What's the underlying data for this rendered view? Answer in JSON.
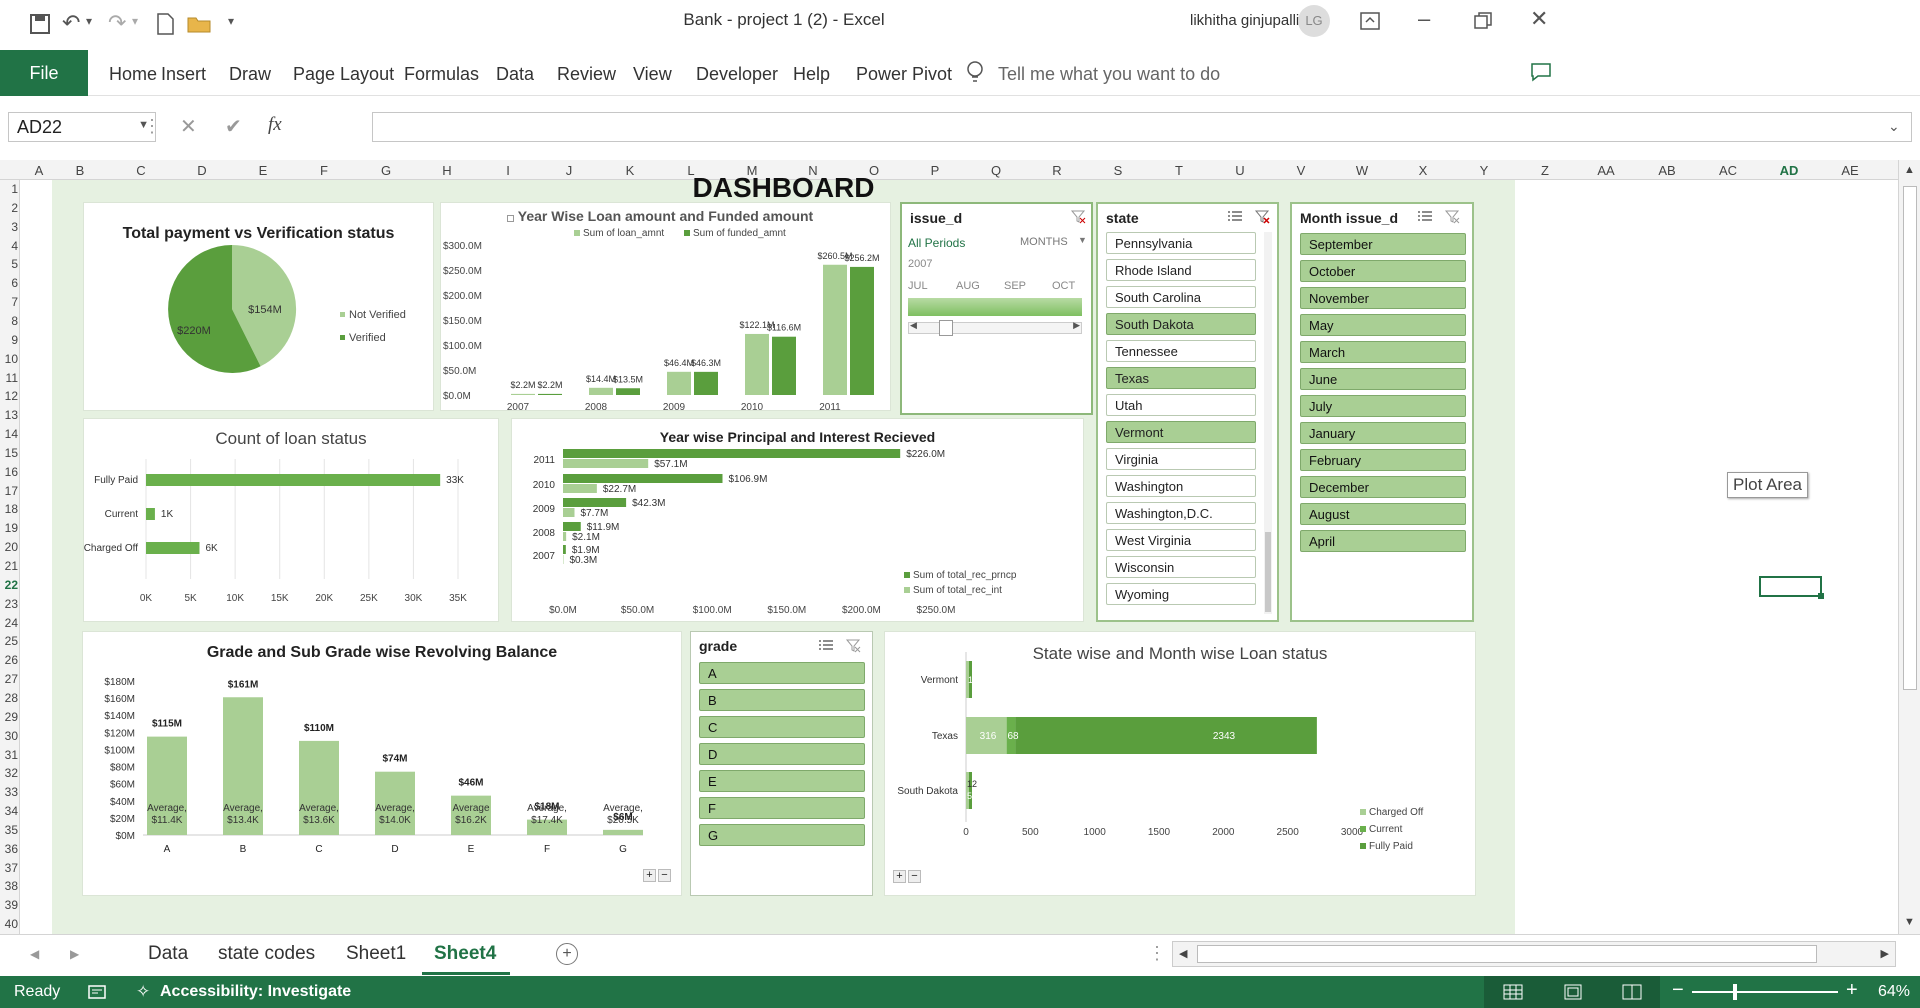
{
  "window": {
    "title": "Bank - project 1 (2)  -  Excel",
    "user": "likhitha ginjupalli",
    "avatar": "LG"
  },
  "ribbon": {
    "tabs": [
      "File",
      "Home",
      "Insert",
      "Draw",
      "Page Layout",
      "Formulas",
      "Data",
      "Review",
      "View",
      "Developer",
      "Help",
      "Power Pivot"
    ],
    "search_placeholder": "Tell me what you want to do"
  },
  "formula_bar": {
    "name_box": "AD22",
    "fx": "fx",
    "value": ""
  },
  "columns": [
    "A",
    "B",
    "C",
    "D",
    "E",
    "F",
    "G",
    "H",
    "I",
    "J",
    "K",
    "L",
    "M",
    "N",
    "O",
    "P",
    "Q",
    "R",
    "S",
    "T",
    "U",
    "V",
    "W",
    "X",
    "Y",
    "Z",
    "AA",
    "AB",
    "AC",
    "AD",
    "AE"
  ],
  "rows": [
    "1",
    "2",
    "3",
    "4",
    "5",
    "6",
    "7",
    "8",
    "9",
    "10",
    "11",
    "12",
    "13",
    "14",
    "15",
    "16",
    "17",
    "18",
    "19",
    "20",
    "21",
    "22",
    "23",
    "24",
    "25",
    "26",
    "27",
    "28",
    "29",
    "30",
    "31",
    "32",
    "33",
    "34",
    "35",
    "36",
    "37",
    "38",
    "39",
    "40"
  ],
  "dashboard": {
    "title": "DASHBOARD",
    "tooltip": "Plot Area"
  },
  "charts": {
    "pie": {
      "title": "Total payment vs Verification status",
      "labels": [
        "$154M",
        "$220M"
      ],
      "legend": [
        "Not Verified",
        "Verified"
      ]
    },
    "yearwise": {
      "title": "Year Wise Loan amount and Funded amount",
      "legend": [
        "Sum of loan_amnt",
        "Sum of funded_amnt"
      ],
      "yticks": [
        "$300.0M",
        "$250.0M",
        "$200.0M",
        "$150.0M",
        "$100.0M",
        "$50.0M",
        "$0.0M"
      ],
      "categories": [
        "2007",
        "2008",
        "2009",
        "2010",
        "2011"
      ],
      "labels_loan": [
        "$2.2M",
        "$14.4M",
        "$46.4M",
        "$122.1M",
        "$260.5M"
      ],
      "labels_funded": [
        "$2.2M",
        "$13.5M",
        "$46.3M",
        "$116.6M",
        "$256.2M"
      ]
    },
    "loanstatus": {
      "title": "Count of loan status",
      "categories": [
        "Fully Paid",
        "Current",
        "Charged Off"
      ],
      "labels": [
        "33K",
        "1K",
        "6K"
      ],
      "xticks": [
        "0K",
        "5K",
        "10K",
        "15K",
        "20K",
        "25K",
        "30K",
        "35K"
      ]
    },
    "principal": {
      "title": "Year wise Principal and Interest Recieved",
      "categories": [
        "2011",
        "2010",
        "2009",
        "2008",
        "2007"
      ],
      "labels_prncp": [
        "$226.0M",
        "$106.9M",
        "$42.3M",
        "$11.9M",
        "$1.9M"
      ],
      "labels_int": [
        "$57.1M",
        "$22.7M",
        "$7.7M",
        "$2.1M",
        "$0.3M"
      ],
      "legend": [
        "Sum of total_rec_prncp",
        "Sum of total_rec_int"
      ],
      "xticks": [
        "$0.0M",
        "$50.0M",
        "$100.0M",
        "$150.0M",
        "$200.0M",
        "$250.0M"
      ]
    },
    "grade": {
      "title": "Grade and Sub Grade wise Revolving Balance",
      "yticks": [
        "$180M",
        "$160M",
        "$140M",
        "$120M",
        "$100M",
        "$80M",
        "$60M",
        "$40M",
        "$20M",
        "$0M"
      ],
      "categories": [
        "A",
        "B",
        "C",
        "D",
        "E",
        "F",
        "G"
      ],
      "top_labels": [
        "$115M",
        "$161M",
        "$110M",
        "$74M",
        "$46M",
        "$18M",
        "$6M"
      ],
      "avg_labels": [
        "$11.4K",
        "$13.4K",
        "$13.6K",
        "$14.0K",
        "$16.2K",
        "$17.4K",
        "$20.5K"
      ],
      "avg_word": "Average,",
      "avg_word_e": "Average"
    },
    "statewise": {
      "title": "State wise and Month wise Loan status",
      "categories": [
        "Vermont",
        "Texas",
        "South Dakota"
      ],
      "texas_labels": [
        "316",
        "68",
        "2343"
      ],
      "small_labels": [
        "1",
        "1",
        "12",
        "5"
      ],
      "legend": [
        "Charged Off",
        "Current",
        "Fully Paid"
      ],
      "xticks": [
        "0",
        "500",
        "1000",
        "1500",
        "2000",
        "2500",
        "3000"
      ]
    }
  },
  "chart_data": [
    {
      "type": "pie",
      "title": "Total payment vs Verification status",
      "categories": [
        "Not Verified",
        "Verified"
      ],
      "values": [
        154,
        220
      ]
    },
    {
      "type": "bar",
      "title": "Year Wise Loan amount and Funded amount",
      "categories": [
        "2007",
        "2008",
        "2009",
        "2010",
        "2011"
      ],
      "series": [
        {
          "name": "Sum of loan_amnt",
          "values": [
            2.2,
            14.4,
            46.4,
            122.1,
            260.5
          ]
        },
        {
          "name": "Sum of funded_amnt",
          "values": [
            2.2,
            13.5,
            46.3,
            116.6,
            256.2
          ]
        }
      ],
      "ylim": [
        0,
        300
      ]
    },
    {
      "type": "bar",
      "title": "Count of loan status",
      "categories": [
        "Fully Paid",
        "Current",
        "Charged Off"
      ],
      "values": [
        33000,
        1000,
        6000
      ],
      "xlim": [
        0,
        35000
      ]
    },
    {
      "type": "bar",
      "title": "Year wise Principal and Interest Recieved",
      "categories": [
        "2011",
        "2010",
        "2009",
        "2008",
        "2007"
      ],
      "series": [
        {
          "name": "Sum of total_rec_prncp",
          "values": [
            226.0,
            106.9,
            42.3,
            11.9,
            1.9
          ]
        },
        {
          "name": "Sum of total_rec_int",
          "values": [
            57.1,
            22.7,
            7.7,
            2.1,
            0.3
          ]
        }
      ],
      "xlim": [
        0,
        250
      ]
    },
    {
      "type": "bar",
      "title": "Grade and Sub Grade wise Revolving Balance",
      "categories": [
        "A",
        "B",
        "C",
        "D",
        "E",
        "F",
        "G"
      ],
      "values": [
        115,
        161,
        110,
        74,
        46,
        18,
        6
      ],
      "ylim": [
        0,
        180
      ]
    },
    {
      "type": "bar",
      "title": "State wise and Month wise Loan status",
      "categories": [
        "Vermont",
        "Texas",
        "South Dakota"
      ],
      "series": [
        {
          "name": "Charged Off",
          "values": [
            1,
            316,
            12
          ]
        },
        {
          "name": "Current",
          "values": [
            0,
            68,
            0
          ]
        },
        {
          "name": "Fully Paid",
          "values": [
            1,
            2343,
            5
          ]
        }
      ],
      "xlim": [
        0,
        3000
      ]
    }
  ],
  "slicers": {
    "issue": {
      "header": "issue_d",
      "all": "All Periods",
      "unit": "MONTHS",
      "year": "2007",
      "months": [
        "JUL",
        "AUG",
        "SEP",
        "OCT"
      ]
    },
    "state": {
      "header": "state",
      "items": [
        "Pennsylvania",
        "Rhode Island",
        "South Carolina",
        "South Dakota",
        "Tennessee",
        "Texas",
        "Utah",
        "Vermont",
        "Virginia",
        "Washington",
        "Washington,D.C.",
        "West Virginia",
        "Wisconsin",
        "Wyoming"
      ],
      "selected": [
        false,
        false,
        false,
        true,
        false,
        true,
        false,
        true,
        false,
        false,
        false,
        false,
        false,
        false
      ]
    },
    "month": {
      "header": "Month issue_d",
      "items": [
        "September",
        "October",
        "November",
        "May",
        "March",
        "June",
        "July",
        "January",
        "February",
        "December",
        "August",
        "April"
      ]
    },
    "grade": {
      "header": "grade",
      "items": [
        "A",
        "B",
        "C",
        "D",
        "E",
        "F",
        "G"
      ]
    }
  },
  "sheets": [
    "Data",
    "state codes",
    "Sheet1",
    "Sheet4"
  ],
  "active_sheet": "Sheet4",
  "status": {
    "ready": "Ready",
    "accessibility": "Accessibility: Investigate",
    "zoom": "64%"
  },
  "colors": {
    "excel_green": "#217346",
    "dark_bar": "#5a9e3d",
    "light_bar": "#a9cf94",
    "dash_bg": "#e6f1e1"
  }
}
